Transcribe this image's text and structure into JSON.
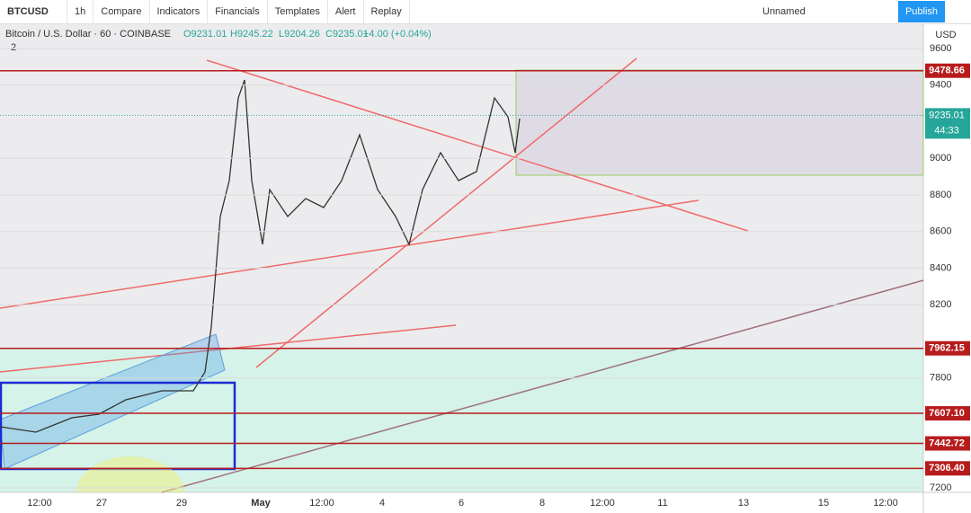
{
  "toolbar": {
    "symbol": "BTCUSD",
    "interval": "1h",
    "items": [
      "Compare",
      "Indicators",
      "Financials",
      "Templates",
      "Alert",
      "Replay"
    ],
    "layout_name": "Unnamed",
    "publish": "Publish"
  },
  "legend": {
    "title": "Bitcoin / U.S. Dollar · 60 · COINBASE",
    "open": "O9231.01",
    "high": "H9245.22",
    "low": "L9204.26",
    "close": "C9235.01",
    "change": "+4.00 (+0.04%)",
    "indicators": "2"
  },
  "price_axis": {
    "currency": "USD",
    "ticks": [
      9600,
      9400,
      9000,
      8800,
      8600,
      8400,
      8200,
      7800,
      7200
    ],
    "levels": [
      9478.66,
      7962.15,
      {
        "value": 7607.1,
        "label": "7607.10"
      },
      7442.72,
      {
        "value": 7306.4,
        "label": "7306.40"
      }
    ],
    "last_price": 9235.01,
    "countdown": "44:33"
  },
  "time_axis": {
    "labels": [
      "12:00",
      "27",
      "29",
      "May",
      "12:00",
      "4",
      "6",
      "8",
      "12:00",
      "11",
      "13",
      "15",
      "12:00"
    ]
  }
}
